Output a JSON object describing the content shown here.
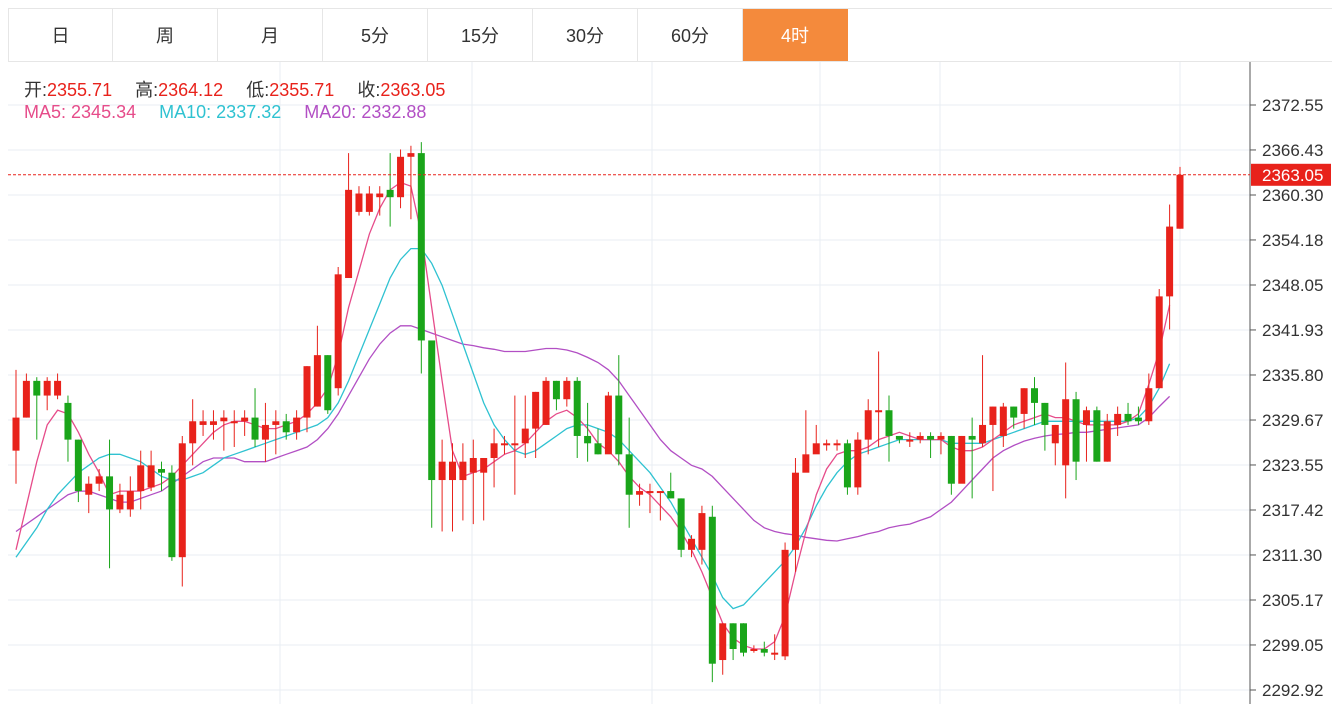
{
  "tabs": [
    "日",
    "周",
    "月",
    "5分",
    "15分",
    "30分",
    "60分",
    "4时"
  ],
  "active_tab": "4时",
  "ohlc": {
    "open_label": "开:",
    "open_value": "2355.71",
    "high_label": "高:",
    "high_value": "2364.12",
    "low_label": "低:",
    "low_value": "2355.71",
    "close_label": "收:",
    "close_value": "2363.05"
  },
  "ma": {
    "ma5_label": "MA5:",
    "ma5_value": "2345.34",
    "ma10_label": "MA10:",
    "ma10_value": "2337.32",
    "ma20_label": "MA20:",
    "ma20_value": "2332.88"
  },
  "colors": {
    "up": "#e8221b",
    "down": "#1aa51a",
    "ma5": "#e64c8a",
    "ma10": "#2fc2d1",
    "ma20": "#b24fc4",
    "active_tab": "#f48a3c"
  },
  "chart_data": {
    "type": "candlestick",
    "y_ticks": [
      "2372.55",
      "2366.43",
      "2360.30",
      "2354.18",
      "2348.05",
      "2341.93",
      "2335.80",
      "2329.67",
      "2323.55",
      "2317.42",
      "2311.30",
      "2305.17",
      "2299.05",
      "2292.92"
    ],
    "ylim": [
      2292.92,
      2372.55
    ],
    "last_price": "2363.05",
    "candles": [
      [
        2325.5,
        2330.0,
        2336.5,
        2321.0
      ],
      [
        2330.0,
        2335.0,
        2336.0,
        2330.0
      ],
      [
        2335.0,
        2333.0,
        2335.5,
        2327.0
      ],
      [
        2333.0,
        2335.0,
        2335.5,
        2331.0
      ],
      [
        2333.0,
        2335.0,
        2336.0,
        2332.5
      ],
      [
        2332.0,
        2327.0,
        2333.0,
        2324.0
      ],
      [
        2327.0,
        2320.0,
        2327.0,
        2318.5
      ],
      [
        2319.5,
        2321.0,
        2322.0,
        2317.0
      ],
      [
        2321.0,
        2322.0,
        2323.0,
        2320.0
      ],
      [
        2322.0,
        2317.5,
        2327.0,
        2309.5
      ],
      [
        2317.5,
        2319.5,
        2321.0,
        2317.0
      ],
      [
        2317.5,
        2320.0,
        2322.0,
        2316.5
      ],
      [
        2320.0,
        2323.5,
        2325.5,
        2317.5
      ],
      [
        2320.5,
        2323.5,
        2325.5,
        2320.0
      ],
      [
        2323.0,
        2322.5,
        2324.0,
        2320.0
      ],
      [
        2322.5,
        2311.0,
        2323.5,
        2310.5
      ],
      [
        2311.0,
        2326.5,
        2327.5,
        2307.0
      ],
      [
        2326.5,
        2329.5,
        2332.5,
        2323.5
      ],
      [
        2329.0,
        2329.5,
        2331.0,
        2327.5
      ],
      [
        2329.0,
        2329.5,
        2331.0,
        2327.0
      ],
      [
        2329.5,
        2330.0,
        2331.0,
        2325.5
      ],
      [
        2329.5,
        2329.5,
        2331.0,
        2326.0
      ],
      [
        2329.5,
        2330.0,
        2331.0,
        2327.5
      ],
      [
        2330.0,
        2327.0,
        2334.0,
        2326.0
      ],
      [
        2327.0,
        2329.0,
        2332.0,
        2324.0
      ],
      [
        2329.0,
        2329.5,
        2331.0,
        2325.0
      ],
      [
        2329.5,
        2328.0,
        2330.5,
        2327.0
      ],
      [
        2328.0,
        2330.0,
        2331.0,
        2327.0
      ],
      [
        2330.0,
        2337.0,
        2337.0,
        2328.0
      ],
      [
        2331.5,
        2338.5,
        2342.5,
        2331.5
      ],
      [
        2338.5,
        2331.0,
        2338.5,
        2330.5
      ],
      [
        2334.0,
        2349.5,
        2350.5,
        2333.0
      ],
      [
        2349.0,
        2361.0,
        2366.0,
        2349.0
      ],
      [
        2358.0,
        2360.5,
        2361.5,
        2357.5
      ],
      [
        2358.0,
        2360.5,
        2361.5,
        2357.5
      ],
      [
        2360.0,
        2360.5,
        2361.5,
        2357.5
      ],
      [
        2361.0,
        2360.0,
        2366.0,
        2356.0
      ],
      [
        2360.0,
        2365.5,
        2366.5,
        2358.5
      ],
      [
        2365.5,
        2366.0,
        2367.0,
        2357.0
      ],
      [
        2366.0,
        2340.5,
        2367.5,
        2336.0
      ],
      [
        2340.5,
        2321.5,
        2340.5,
        2315.0
      ],
      [
        2321.5,
        2324.0,
        2327.0,
        2314.5
      ],
      [
        2321.5,
        2324.0,
        2326.5,
        2314.5
      ],
      [
        2321.5,
        2324.0,
        2326.5,
        2316.0
      ],
      [
        2322.5,
        2324.5,
        2327.0,
        2315.5
      ],
      [
        2322.5,
        2324.5,
        2324.5,
        2316.0
      ],
      [
        2324.5,
        2326.5,
        2328.5,
        2320.5
      ],
      [
        2326.5,
        2326.5,
        2327.5,
        2325.0
      ],
      [
        2326.5,
        2326.5,
        2333.0,
        2319.5
      ],
      [
        2326.5,
        2328.5,
        2333.0,
        2324.5
      ],
      [
        2328.5,
        2333.5,
        2333.5,
        2324.5
      ],
      [
        2329.0,
        2335.0,
        2335.5,
        2329.0
      ],
      [
        2335.0,
        2332.5,
        2335.0,
        2331.0
      ],
      [
        2332.5,
        2335.0,
        2335.5,
        2331.5
      ],
      [
        2335.0,
        2327.5,
        2335.5,
        2324.5
      ],
      [
        2327.5,
        2326.5,
        2332.0,
        2324.0
      ],
      [
        2326.5,
        2325.0,
        2328.5,
        2325.0
      ],
      [
        2325.0,
        2333.0,
        2333.5,
        2326.0
      ],
      [
        2333.0,
        2325.0,
        2338.5,
        2323.5
      ],
      [
        2325.0,
        2319.5,
        2330.0,
        2315.0
      ],
      [
        2319.5,
        2320.0,
        2321.0,
        2318.0
      ],
      [
        2320.0,
        2320.0,
        2321.0,
        2317.0
      ],
      [
        2320.0,
        2320.0,
        2320.0,
        2316.0
      ],
      [
        2320.0,
        2319.0,
        2322.5,
        2319.0
      ],
      [
        2319.0,
        2312.0,
        2319.0,
        2311.0
      ],
      [
        2312.0,
        2313.5,
        2314.0,
        2311.0
      ],
      [
        2312.0,
        2317.0,
        2318.0,
        2310.0
      ],
      [
        2316.5,
        2296.5,
        2318.0,
        2294.0
      ],
      [
        2297.0,
        2302.0,
        2302.0,
        2295.0
      ],
      [
        2302.0,
        2298.5,
        2302.0,
        2297.0
      ],
      [
        2302.0,
        2298.0,
        2302.0,
        2297.5
      ],
      [
        2298.5,
        2298.5,
        2299.0,
        2298.0
      ],
      [
        2298.5,
        2298.0,
        2299.5,
        2297.5
      ],
      [
        2298.0,
        2298.0,
        2300.5,
        2297.0
      ],
      [
        2297.5,
        2312.0,
        2313.0,
        2297.0
      ],
      [
        2312.0,
        2322.5,
        2324.5,
        2309.0
      ],
      [
        2322.5,
        2325.0,
        2331.0,
        2324.0
      ],
      [
        2325.0,
        2326.5,
        2329.0,
        2325.5
      ],
      [
        2326.5,
        2326.5,
        2327.0,
        2325.5
      ],
      [
        2326.5,
        2326.5,
        2327.0,
        2325.5
      ],
      [
        2326.5,
        2320.5,
        2327.0,
        2319.5
      ],
      [
        2320.5,
        2327.0,
        2328.0,
        2319.5
      ],
      [
        2327.0,
        2331.0,
        2332.5,
        2325.0
      ],
      [
        2331.0,
        2331.0,
        2339.0,
        2326.0
      ],
      [
        2331.0,
        2327.5,
        2333.0,
        2324.0
      ],
      [
        2327.5,
        2327.0,
        2327.5,
        2326.5
      ],
      [
        2327.0,
        2327.0,
        2328.0,
        2326.0
      ],
      [
        2327.0,
        2327.5,
        2328.0,
        2326.5
      ],
      [
        2327.5,
        2327.0,
        2328.0,
        2324.5
      ],
      [
        2327.0,
        2327.5,
        2328.0,
        2325.0
      ],
      [
        2327.5,
        2321.0,
        2327.5,
        2319.5
      ],
      [
        2321.0,
        2327.5,
        2327.5,
        2324.0
      ],
      [
        2327.5,
        2327.0,
        2330.0,
        2319.0
      ],
      [
        2326.5,
        2329.0,
        2338.5,
        2326.0
      ],
      [
        2329.0,
        2331.5,
        2331.5,
        2320.0
      ],
      [
        2327.5,
        2331.5,
        2332.0,
        2326.0
      ],
      [
        2331.5,
        2330.0,
        2331.5,
        2328.5
      ],
      [
        2330.5,
        2334.0,
        2334.0,
        2328.5
      ],
      [
        2334.0,
        2332.0,
        2335.5,
        2329.0
      ],
      [
        2332.0,
        2329.0,
        2332.0,
        2325.5
      ],
      [
        2326.5,
        2329.0,
        2329.0,
        2323.5
      ],
      [
        2323.5,
        2332.5,
        2337.5,
        2319.0
      ],
      [
        2332.5,
        2324.0,
        2333.5,
        2321.5
      ],
      [
        2329.0,
        2331.0,
        2331.5,
        2324.0
      ],
      [
        2331.0,
        2324.0,
        2331.5,
        2324.0
      ],
      [
        2324.0,
        2329.5,
        2330.5,
        2324.0
      ],
      [
        2329.0,
        2330.5,
        2331.5,
        2327.5
      ],
      [
        2330.5,
        2329.5,
        2332.0,
        2329.0
      ],
      [
        2330.0,
        2329.5,
        2331.5,
        2329.0
      ],
      [
        2329.5,
        2334.0,
        2336.0,
        2329.0
      ],
      [
        2334.0,
        2346.5,
        2347.5,
        2334.0
      ],
      [
        2346.5,
        2356.0,
        2359.0,
        2342.0
      ],
      [
        2355.71,
        2363.05,
        2364.12,
        2355.71
      ]
    ],
    "ma5": [
      2312.0,
      2318.0,
      2324.0,
      2329.0,
      2331.0,
      2330.5,
      2328.0,
      2325.0,
      2322.5,
      2319.5,
      2320.0,
      2320.0,
      2320.0,
      2320.5,
      2321.0,
      2322.0,
      2323.5,
      2325.0,
      2326.5,
      2328.0,
      2329.0,
      2329.5,
      2329.5,
      2329.0,
      2328.5,
      2328.5,
      2329.0,
      2329.5,
      2330.5,
      2332.0,
      2334.0,
      2338.5,
      2345.0,
      2350.0,
      2355.0,
      2358.5,
      2361.0,
      2362.0,
      2361.5,
      2355.0,
      2345.0,
      2335.0,
      2325.5,
      2322.0,
      2322.5,
      2323.0,
      2324.0,
      2325.0,
      2325.5,
      2326.5,
      2328.0,
      2329.5,
      2330.5,
      2331.0,
      2330.0,
      2328.5,
      2326.5,
      2325.5,
      2324.0,
      2322.0,
      2320.5,
      2319.5,
      2318.0,
      2316.5,
      2314.5,
      2312.0,
      2309.0,
      2305.5,
      2302.0,
      2300.0,
      2299.0,
      2298.5,
      2298.5,
      2299.5,
      2303.0,
      2309.0,
      2314.5,
      2319.5,
      2323.0,
      2325.0,
      2325.5,
      2325.5,
      2326.0,
      2327.0,
      2327.5,
      2328.0,
      2327.5,
      2327.0,
      2327.0,
      2327.0,
      2326.0,
      2325.5,
      2325.5,
      2326.0,
      2327.0,
      2328.0,
      2329.0,
      2329.5,
      2330.0,
      2330.5,
      2330.0,
      2330.0,
      2329.5,
      2329.0,
      2329.0,
      2329.0,
      2329.0,
      2329.5,
      2330.5,
      2334.5,
      2339.0,
      2345.34
    ],
    "ma10": [
      2311.0,
      2313.0,
      2315.0,
      2317.5,
      2319.5,
      2321.0,
      2322.5,
      2323.5,
      2324.5,
      2325.0,
      2325.0,
      2324.5,
      2324.0,
      2323.0,
      2322.0,
      2321.5,
      2321.5,
      2322.0,
      2322.5,
      2323.5,
      2324.5,
      2325.0,
      2325.5,
      2326.0,
      2326.5,
      2327.0,
      2327.5,
      2328.0,
      2328.5,
      2329.0,
      2330.0,
      2332.0,
      2335.0,
      2338.5,
      2342.0,
      2345.5,
      2349.0,
      2351.5,
      2353.0,
      2353.0,
      2351.0,
      2348.0,
      2344.0,
      2340.0,
      2336.0,
      2332.0,
      2329.0,
      2327.0,
      2325.5,
      2325.0,
      2325.5,
      2326.5,
      2327.5,
      2328.5,
      2329.0,
      2329.0,
      2328.5,
      2328.0,
      2327.0,
      2325.5,
      2324.0,
      2322.5,
      2320.5,
      2318.5,
      2316.0,
      2313.5,
      2311.0,
      2308.5,
      2305.5,
      2304.0,
      2304.5,
      2306.0,
      2307.5,
      2309.0,
      2310.5,
      2312.5,
      2315.0,
      2318.0,
      2320.5,
      2322.5,
      2324.0,
      2325.0,
      2325.5,
      2326.0,
      2326.5,
      2327.0,
      2327.0,
      2327.0,
      2327.0,
      2327.0,
      2326.5,
      2326.5,
      2326.5,
      2326.5,
      2327.0,
      2327.5,
      2328.0,
      2328.5,
      2329.0,
      2329.5,
      2329.5,
      2329.5,
      2329.5,
      2329.5,
      2329.5,
      2329.5,
      2329.5,
      2329.5,
      2330.0,
      2331.5,
      2334.0,
      2337.32
    ],
    "ma20": [
      2314.5,
      2315.5,
      2316.5,
      2317.5,
      2318.5,
      2319.5,
      2320.0,
      2320.0,
      2319.5,
      2319.0,
      2318.5,
      2318.5,
      2319.0,
      2319.5,
      2320.0,
      2321.0,
      2322.0,
      2323.0,
      2324.0,
      2324.5,
      2324.5,
      2324.5,
      2324.0,
      2324.0,
      2324.0,
      2324.5,
      2325.0,
      2325.5,
      2326.0,
      2327.0,
      2328.5,
      2330.5,
      2333.0,
      2335.5,
      2338.0,
      2340.0,
      2341.5,
      2342.5,
      2342.5,
      2342.0,
      2341.5,
      2341.0,
      2340.5,
      2340.0,
      2339.8,
      2339.5,
      2339.3,
      2339.0,
      2339.0,
      2339.0,
      2339.2,
      2339.4,
      2339.4,
      2339.2,
      2338.8,
      2338.2,
      2337.5,
      2336.5,
      2335.0,
      2333.0,
      2331.0,
      2329.0,
      2327.0,
      2325.5,
      2324.5,
      2323.5,
      2323.0,
      2322.0,
      2320.5,
      2319.0,
      2317.5,
      2316.0,
      2315.0,
      2314.5,
      2314.2,
      2314.0,
      2313.7,
      2313.5,
      2313.3,
      2313.2,
      2313.5,
      2313.8,
      2314.2,
      2314.5,
      2315.0,
      2315.3,
      2315.5,
      2316.0,
      2316.5,
      2317.5,
      2318.5,
      2320.0,
      2321.5,
      2323.0,
      2324.5,
      2325.5,
      2326.2,
      2326.8,
      2327.2,
      2327.5,
      2327.7,
      2327.8,
      2328.0,
      2328.0,
      2328.2,
      2328.4,
      2328.6,
      2328.8,
      2329.0,
      2330.0,
      2331.5,
      2332.88
    ]
  }
}
